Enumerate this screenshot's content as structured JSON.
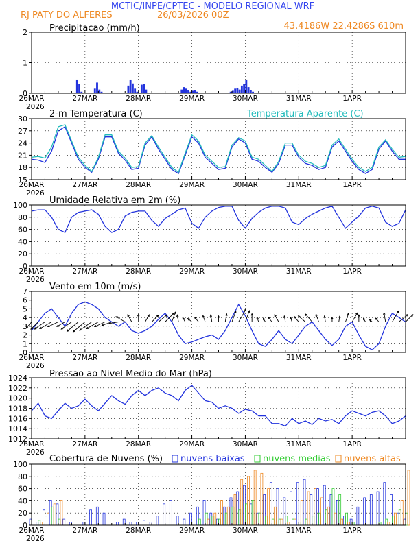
{
  "header": {
    "title": "MCTIC/INPE/CPTEC - MODELO REGIONAL WRF",
    "location": "RJ PATY DO ALFERES",
    "run": "26/03/2026 00Z",
    "coords": "43.4186W 22.4286S 610m"
  },
  "colors": {
    "title": "#3344ee",
    "orange": "#ee8822",
    "blue": "#2233dd",
    "cyan": "#22bbbb",
    "green": "#33cc33",
    "black": "#000000"
  },
  "chart_data": [
    {
      "type": "bar",
      "title": "Precipitacao (mm/h)",
      "ylim": [
        0,
        2
      ],
      "yticks": [
        0,
        1,
        2
      ],
      "x_ticks": [
        "26MAR",
        "27MAR",
        "28MAR",
        "29MAR",
        "30MAR",
        "31MAR",
        "1APR"
      ],
      "x_year": "2026",
      "x": [
        20,
        21,
        22,
        28,
        29,
        30,
        31,
        43,
        44,
        45,
        46,
        47,
        49,
        50,
        51,
        67,
        68,
        69,
        70,
        71,
        72,
        73,
        74,
        89,
        90,
        91,
        92,
        93,
        94,
        95,
        96,
        97,
        98,
        99
      ],
      "values": [
        0.45,
        0.3,
        0.05,
        0.15,
        0.35,
        0.12,
        0.05,
        0.25,
        0.45,
        0.32,
        0.15,
        0.05,
        0.28,
        0.3,
        0.12,
        0.12,
        0.2,
        0.15,
        0.1,
        0.05,
        0.08,
        0.1,
        0.05,
        0.05,
        0.08,
        0.15,
        0.18,
        0.12,
        0.25,
        0.3,
        0.45,
        0.2,
        0.1,
        0.05
      ]
    },
    {
      "type": "line",
      "title": "2-m Temperatura (C)",
      "legend": "Temperatura Aparente (C)",
      "ylim": [
        15,
        30
      ],
      "yticks": [
        15,
        18,
        21,
        24,
        27,
        30
      ],
      "x_ticks": [
        "26MAR",
        "27MAR",
        "28MAR",
        "29MAR",
        "30MAR",
        "31MAR",
        "1APR"
      ],
      "x_year": "2026",
      "series": [
        {
          "name": "2-m Temperatura",
          "x": [
            0,
            3,
            6,
            9,
            12,
            15,
            18,
            21,
            24,
            27,
            30,
            33,
            36,
            39,
            42,
            45,
            48,
            51,
            54,
            57,
            60,
            63,
            66,
            69,
            72,
            75,
            78,
            81,
            84,
            87,
            90,
            93,
            96,
            99,
            102,
            105,
            108,
            111,
            114,
            117,
            120,
            123,
            126,
            129,
            132,
            135,
            138,
            141,
            144,
            147,
            150,
            153,
            156,
            159,
            162,
            165,
            168
          ],
          "values": [
            20,
            19.8,
            19.2,
            22,
            27,
            28,
            24,
            20,
            18,
            16.8,
            20,
            25.5,
            25.5,
            21.5,
            19.8,
            17.5,
            17.8,
            23.5,
            25.5,
            22.5,
            20,
            17.5,
            16.5,
            21,
            25.5,
            24,
            20.5,
            19,
            17.5,
            17.8,
            23,
            25,
            24,
            20,
            19.5,
            18,
            16.8,
            19,
            23.5,
            23.5,
            20.5,
            19,
            18.5,
            17.5,
            18,
            23,
            24.5,
            22,
            19.5,
            17.5,
            16.5,
            17.5,
            22.5,
            24.5,
            22,
            20,
            20
          ]
        },
        {
          "name": "Temperatura Aparente",
          "x": [
            0,
            3,
            6,
            9,
            12,
            15,
            18,
            21,
            24,
            27,
            30,
            33,
            36,
            39,
            42,
            45,
            48,
            51,
            54,
            57,
            60,
            63,
            66,
            69,
            72,
            75,
            78,
            81,
            84,
            87,
            90,
            93,
            96,
            99,
            102,
            105,
            108,
            111,
            114,
            117,
            120,
            123,
            126,
            129,
            132,
            135,
            138,
            141,
            144,
            147,
            150,
            153,
            156,
            159,
            162,
            165,
            168
          ],
          "values": [
            20.5,
            20.7,
            20.3,
            23,
            28,
            28.5,
            24.5,
            20.5,
            18.5,
            17,
            20.5,
            26,
            26,
            22,
            20.3,
            18,
            18.2,
            24,
            25.8,
            23,
            20.5,
            18,
            16.8,
            21.5,
            26,
            24.5,
            21,
            19.5,
            18,
            18.2,
            23.5,
            25.3,
            24.5,
            20.5,
            20,
            18.5,
            17,
            19.5,
            24,
            24,
            21,
            19.5,
            19,
            18,
            18.5,
            23.5,
            25,
            22.5,
            20,
            18,
            17,
            18,
            23,
            24.8,
            22.5,
            20.5,
            20.7
          ]
        }
      ]
    },
    {
      "type": "line",
      "title": "Umidade Relativa em 2m (%)",
      "ylim": [
        0,
        100
      ],
      "yticks": [
        0,
        20,
        40,
        60,
        80,
        100
      ],
      "x_ticks": [
        "26MAR",
        "27MAR",
        "28MAR",
        "29MAR",
        "30MAR",
        "31MAR",
        "1APR"
      ],
      "x_year": "2026",
      "x": [
        0,
        3,
        6,
        9,
        12,
        15,
        18,
        21,
        24,
        27,
        30,
        33,
        36,
        39,
        42,
        45,
        48,
        51,
        54,
        57,
        60,
        63,
        66,
        69,
        72,
        75,
        78,
        81,
        84,
        87,
        90,
        93,
        96,
        99,
        102,
        105,
        108,
        111,
        114,
        117,
        120,
        123,
        126,
        129,
        132,
        135,
        138,
        141,
        144,
        147,
        150,
        153,
        156,
        159,
        162,
        165,
        168
      ],
      "values": [
        90,
        92,
        92,
        80,
        60,
        55,
        80,
        88,
        90,
        92,
        85,
        65,
        55,
        60,
        82,
        88,
        90,
        90,
        75,
        65,
        78,
        85,
        92,
        95,
        70,
        62,
        80,
        90,
        96,
        98,
        98,
        75,
        62,
        78,
        88,
        95,
        98,
        98,
        95,
        72,
        68,
        78,
        85,
        90,
        95,
        98,
        80,
        62,
        72,
        82,
        95,
        98,
        95,
        72,
        65,
        70,
        92
      ]
    },
    {
      "type": "line",
      "title": "Vento em 10m (m/s)",
      "ylim": [
        0,
        7
      ],
      "yticks": [
        0,
        1,
        2,
        3,
        4,
        5,
        6,
        7
      ],
      "x_ticks": [
        "26MAR",
        "27MAR",
        "28MAR",
        "29MAR",
        "30MAR",
        "31MAR",
        "1APR"
      ],
      "x_year": "2026",
      "x": [
        0,
        3,
        6,
        9,
        12,
        15,
        18,
        21,
        24,
        27,
        30,
        33,
        36,
        39,
        42,
        45,
        48,
        51,
        54,
        57,
        60,
        63,
        66,
        69,
        72,
        75,
        78,
        81,
        84,
        87,
        90,
        93,
        96,
        99,
        102,
        105,
        108,
        111,
        114,
        117,
        120,
        123,
        126,
        129,
        132,
        135,
        138,
        141,
        144,
        147,
        150,
        153,
        156,
        159,
        162,
        165,
        168
      ],
      "values": [
        2.5,
        3.5,
        4.5,
        5,
        4,
        3,
        4.5,
        5.5,
        5.8,
        5.5,
        5,
        4,
        3.5,
        3,
        3.5,
        2.5,
        2.2,
        2.5,
        3,
        3.8,
        4.5,
        3.5,
        2,
        1,
        1.2,
        1.5,
        1.8,
        2,
        1.5,
        2.5,
        4,
        5.5,
        4.2,
        2.5,
        1,
        0.7,
        1.5,
        2.5,
        1.5,
        1,
        2,
        3,
        3.5,
        2.5,
        1.5,
        0.8,
        1.5,
        3,
        3.5,
        2,
        0.7,
        0.3,
        1,
        3,
        4.5,
        4,
        3.5
      ],
      "arrow_direction_deg": [
        230,
        225,
        215,
        210,
        205,
        210,
        215,
        220,
        220,
        215,
        210,
        205,
        200,
        190,
        150,
        120,
        90,
        60,
        45,
        40,
        45,
        70,
        100,
        120,
        140,
        130,
        110,
        100,
        90,
        80,
        70,
        60,
        70,
        90,
        110,
        120,
        130,
        120,
        100,
        110,
        130,
        140,
        130,
        110,
        100,
        90,
        80,
        70,
        60,
        90,
        120,
        140,
        130,
        100,
        60,
        40,
        45
      ]
    },
    {
      "type": "line",
      "title": "Pressao ao Nivel Medio do Mar (hPa)",
      "ylim": [
        1012,
        1024
      ],
      "yticks": [
        1012,
        1014,
        1016,
        1018,
        1020,
        1022,
        1024
      ],
      "x_ticks": [
        "26MAR",
        "27MAR",
        "28MAR",
        "29MAR",
        "30MAR",
        "31MAR",
        "1APR"
      ],
      "x_year": "2026",
      "x": [
        0,
        3,
        6,
        9,
        12,
        15,
        18,
        21,
        24,
        27,
        30,
        33,
        36,
        39,
        42,
        45,
        48,
        51,
        54,
        57,
        60,
        63,
        66,
        69,
        72,
        75,
        78,
        81,
        84,
        87,
        90,
        93,
        96,
        99,
        102,
        105,
        108,
        111,
        114,
        117,
        120,
        123,
        126,
        129,
        132,
        135,
        138,
        141,
        144,
        147,
        150,
        153,
        156,
        159,
        162,
        165,
        168
      ],
      "values": [
        1017.5,
        1019,
        1016.5,
        1016,
        1017.5,
        1019,
        1018,
        1018.5,
        1019.8,
        1018.5,
        1017.5,
        1019,
        1020.5,
        1019.5,
        1018.8,
        1020.5,
        1021.5,
        1020.5,
        1021.5,
        1022,
        1021,
        1020.5,
        1019.5,
        1021.5,
        1022.5,
        1021,
        1019.5,
        1019.2,
        1018,
        1018.5,
        1018,
        1017,
        1017.8,
        1017.5,
        1016.5,
        1016.5,
        1015,
        1015,
        1014.5,
        1016,
        1015,
        1015.5,
        1014.8,
        1016,
        1015.5,
        1015.8,
        1015,
        1016.5,
        1017.5,
        1017,
        1016.5,
        1017.2,
        1017.5,
        1016.5,
        1015,
        1015.5,
        1016.5
      ]
    },
    {
      "type": "bar",
      "title": "Cobertura de Nuvens (%)",
      "legend": [
        "nuvens baixas",
        "nuvens medias",
        "nuvens altas"
      ],
      "ylim": [
        0,
        100
      ],
      "yticks": [
        0,
        20,
        40,
        60,
        80,
        100
      ],
      "x_ticks": [
        "26MAR",
        "27MAR",
        "28MAR",
        "29MAR",
        "30MAR",
        "31MAR",
        "1APR"
      ],
      "x_year": "2026",
      "x": [
        0,
        3,
        6,
        9,
        12,
        15,
        18,
        21,
        24,
        27,
        30,
        33,
        36,
        39,
        42,
        45,
        48,
        51,
        54,
        57,
        60,
        63,
        66,
        69,
        72,
        75,
        78,
        81,
        84,
        87,
        90,
        93,
        96,
        99,
        102,
        105,
        108,
        111,
        114,
        117,
        120,
        123,
        126,
        129,
        132,
        135,
        138,
        141,
        144,
        147,
        150,
        153,
        156,
        159,
        162,
        165,
        168
      ],
      "series": [
        {
          "name": "nuvens baixas",
          "values": [
            10,
            5,
            25,
            40,
            35,
            10,
            5,
            0,
            5,
            25,
            30,
            20,
            0,
            5,
            10,
            5,
            5,
            8,
            5,
            15,
            35,
            40,
            15,
            10,
            20,
            30,
            40,
            20,
            10,
            30,
            45,
            55,
            65,
            35,
            20,
            50,
            70,
            60,
            45,
            55,
            70,
            75,
            50,
            60,
            65,
            50,
            40,
            15,
            10,
            30,
            45,
            50,
            55,
            70,
            50,
            20,
            10
          ]
        },
        {
          "name": "nuvens medias",
          "values": [
            0,
            8,
            15,
            30,
            10,
            0,
            0,
            0,
            0,
            0,
            0,
            0,
            0,
            0,
            0,
            0,
            0,
            0,
            0,
            0,
            0,
            0,
            0,
            0,
            5,
            10,
            20,
            15,
            10,
            20,
            30,
            25,
            35,
            40,
            20,
            15,
            10,
            10,
            15,
            10,
            5,
            10,
            15,
            20,
            25,
            60,
            50,
            20,
            5,
            0,
            0,
            0,
            5,
            10,
            15,
            25,
            20
          ]
        },
        {
          "name": "nuvens altas",
          "values": [
            0,
            5,
            20,
            35,
            40,
            5,
            0,
            0,
            0,
            0,
            0,
            0,
            0,
            0,
            0,
            0,
            0,
            0,
            0,
            0,
            0,
            0,
            0,
            0,
            0,
            0,
            10,
            20,
            40,
            30,
            50,
            75,
            80,
            90,
            85,
            60,
            30,
            10,
            5,
            10,
            40,
            55,
            60,
            45,
            30,
            20,
            10,
            5,
            0,
            0,
            0,
            0,
            0,
            5,
            20,
            40,
            90
          ]
        }
      ]
    }
  ]
}
